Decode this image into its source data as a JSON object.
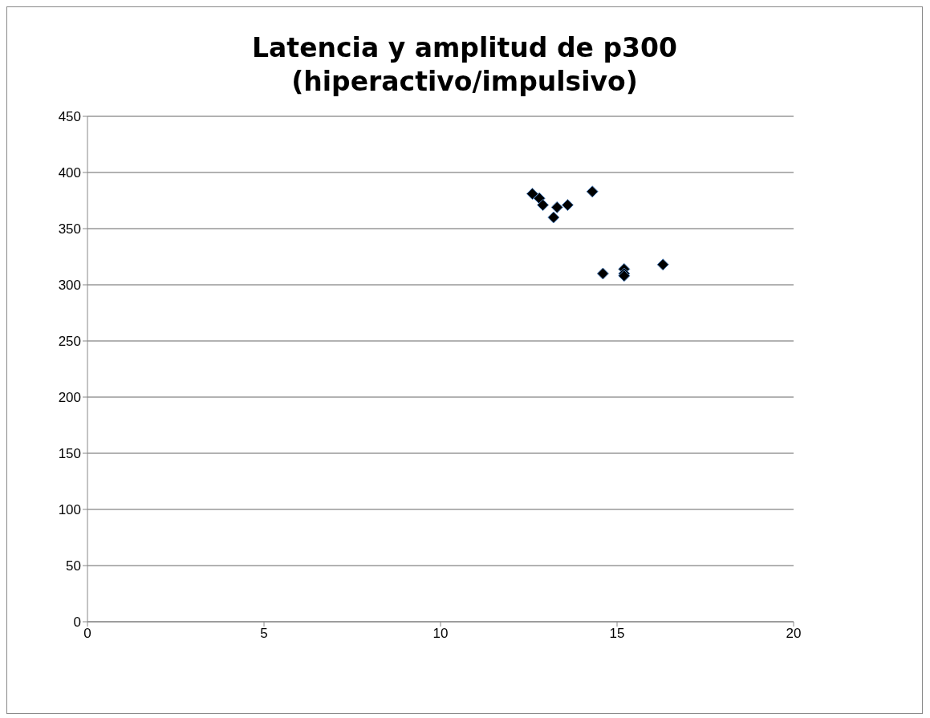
{
  "chart_data": {
    "type": "scatter",
    "title": "Latencia y amplitud de p300 (hiperactivo/impulsivo)",
    "series": [
      {
        "color": "#000000",
        "x": [
          12.6,
          12.8,
          12.9,
          13.3,
          13.2,
          13.6,
          14.3,
          14.6,
          15.2,
          15.2,
          15.2,
          16.3
        ],
        "values": [
          381,
          377,
          371,
          369,
          360,
          371,
          383,
          310,
          314,
          310,
          308,
          318
        ]
      }
    ],
    "xlim": [
      0,
      20
    ],
    "xticks": [
      0,
      5,
      10,
      15,
      20
    ],
    "ylim": [
      0,
      450
    ],
    "yticks": [
      0,
      50,
      100,
      150,
      200,
      250,
      300,
      350,
      400,
      450
    ],
    "grid": "y",
    "marker": "diamond",
    "legend": false
  }
}
